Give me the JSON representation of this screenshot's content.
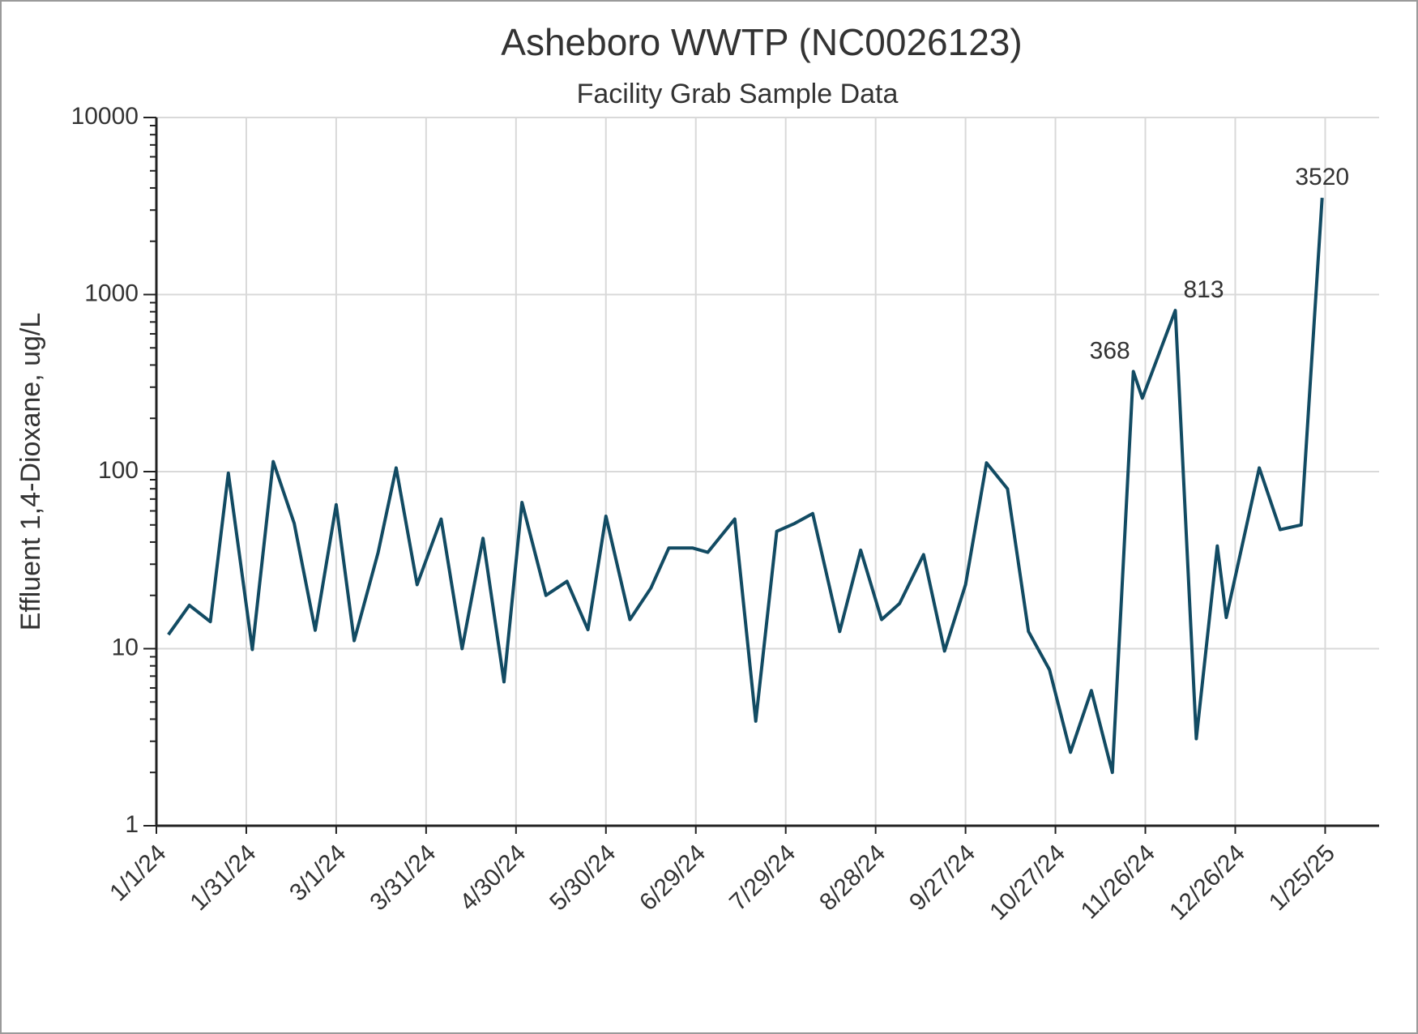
{
  "chart_data": {
    "type": "line",
    "title": "Asheboro WWTP (NC0026123)",
    "subtitle": "Facility Grab Sample Data",
    "y_label": "Effluent 1,4-Dioxane, ug/L",
    "x": [
      "1/5/24",
      "1/12/24",
      "1/19/24",
      "1/25/24",
      "2/2/24",
      "2/9/24",
      "2/16/24",
      "2/23/24",
      "3/1/24",
      "3/7/24",
      "3/15/24",
      "3/21/24",
      "3/28/24",
      "4/5/24",
      "4/12/24",
      "4/19/24",
      "4/26/24",
      "5/2/24",
      "5/10/24",
      "5/17/24",
      "5/24/24",
      "5/30/24",
      "6/7/24",
      "6/14/24",
      "6/20/24",
      "6/28/24",
      "7/3/24",
      "7/12/24",
      "7/19/24",
      "7/26/24",
      "8/1/24",
      "8/7/24",
      "8/16/24",
      "8/23/24",
      "8/30/24",
      "9/5/24",
      "9/13/24",
      "9/20/24",
      "9/27/24",
      "10/4/24",
      "10/11/24",
      "10/18/24",
      "10/25/24",
      "11/1/24",
      "11/8/24",
      "11/15/24",
      "11/22/24",
      "11/25/24",
      "12/6/24",
      "12/13/24",
      "12/20/24",
      "12/23/24",
      "1/3/25",
      "1/10/25",
      "1/17/25",
      "1/24/25"
    ],
    "series": [
      {
        "name": "Effluent 1,4-Dioxane",
        "color": "#124b63",
        "values": [
          12,
          17.6,
          14.2,
          98,
          9.9,
          114,
          51,
          12.7,
          65,
          11.1,
          35,
          105,
          23,
          54,
          10,
          42,
          6.5,
          67,
          20,
          24,
          12.8,
          56,
          14.6,
          22,
          37,
          37,
          35,
          54,
          3.9,
          46,
          51,
          58,
          12.5,
          36,
          14.6,
          18,
          34,
          9.7,
          23,
          112,
          80,
          12.5,
          7.6,
          2.6,
          5.8,
          2.0,
          368,
          260,
          813,
          3.1,
          38,
          15,
          105,
          47,
          50,
          3520
        ],
        "value_labels": [
          null,
          null,
          null,
          null,
          null,
          null,
          null,
          null,
          null,
          null,
          null,
          null,
          null,
          null,
          null,
          null,
          null,
          null,
          null,
          null,
          null,
          null,
          null,
          null,
          null,
          null,
          null,
          null,
          null,
          null,
          null,
          null,
          null,
          null,
          null,
          null,
          null,
          null,
          null,
          null,
          null,
          null,
          null,
          null,
          null,
          null,
          "368",
          null,
          "813",
          null,
          null,
          null,
          null,
          null,
          null,
          "3520"
        ]
      }
    ],
    "xlim": [
      "1/1/24",
      "2/12/25"
    ],
    "xticks": [
      "1/1/24",
      "1/31/24",
      "3/1/24",
      "3/31/24",
      "4/30/24",
      "5/30/24",
      "6/29/24",
      "7/29/24",
      "8/28/24",
      "9/27/24",
      "10/27/24",
      "11/26/24",
      "12/26/24",
      "1/25/25"
    ],
    "ylim": [
      1,
      10000
    ],
    "yticks": [
      1,
      10,
      100,
      1000,
      10000
    ],
    "log_y": true,
    "grid": true,
    "legend": false
  }
}
